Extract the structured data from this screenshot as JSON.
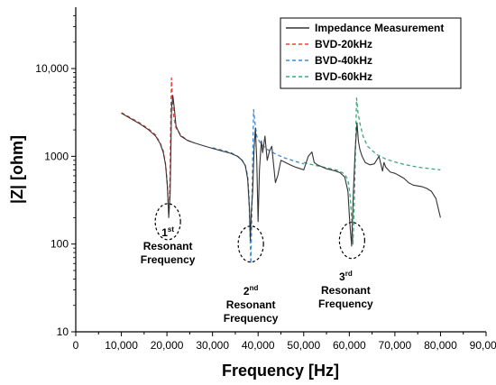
{
  "chart_data": {
    "type": "line",
    "xlabel": "Frequency [Hz]",
    "ylabel": "|Z| [ohm]",
    "xlim": [
      0,
      90000
    ],
    "ylim": [
      10,
      50000
    ],
    "yscale": "log",
    "x_ticks": [
      0,
      10000,
      20000,
      30000,
      40000,
      50000,
      60000,
      70000,
      80000,
      90000
    ],
    "x_tick_labels": [
      "0",
      "10,000",
      "20,000",
      "30,000",
      "40,000",
      "50,000",
      "60,000",
      "70,000",
      "80,000",
      "90,000"
    ],
    "y_ticks": [
      10,
      100,
      1000,
      10000
    ],
    "y_tick_labels": [
      "10",
      "100",
      "1000",
      "10,000"
    ],
    "grid": false,
    "legend_position": "top-right",
    "series": [
      {
        "name": "Impedance Measurement",
        "color": "#333333",
        "style": "solid",
        "x": [
          10000,
          12000,
          14000,
          16000,
          17500,
          18500,
          19200,
          19700,
          20100,
          20400,
          20700,
          21000,
          21300,
          21600,
          22000,
          23000,
          24500,
          26000,
          28000,
          30000,
          32000,
          34000,
          35500,
          36500,
          37200,
          37700,
          38100,
          38300,
          38500,
          38800,
          39100,
          39400,
          39700,
          40000,
          40300,
          40700,
          41000,
          41500,
          42000,
          42500,
          43000,
          43400,
          43800,
          44300,
          45000,
          46000,
          47000,
          48000,
          49000,
          50000,
          51000,
          51800,
          52300,
          53000,
          54000,
          55000,
          56000,
          57000,
          58000,
          59000,
          59700,
          60100,
          60500,
          60900,
          61300,
          61700,
          62000,
          62300,
          62800,
          63500,
          64500,
          65500,
          66500,
          67300,
          67600,
          68000,
          69000,
          70000,
          71000,
          72000,
          73000,
          74000,
          75000,
          76000,
          77000,
          78000,
          79000,
          80000
        ],
        "y": [
          3100,
          2700,
          2350,
          2000,
          1700,
          1400,
          1100,
          800,
          450,
          200,
          380,
          3500,
          4900,
          3600,
          2200,
          1700,
          1520,
          1420,
          1320,
          1230,
          1150,
          1080,
          1000,
          900,
          780,
          550,
          250,
          110,
          230,
          400,
          1200,
          2100,
          900,
          180,
          700,
          1500,
          1100,
          1700,
          900,
          1150,
          1300,
          800,
          500,
          600,
          900,
          850,
          800,
          760,
          730,
          700,
          1000,
          1120,
          850,
          800,
          760,
          720,
          700,
          680,
          650,
          580,
          400,
          180,
          95,
          400,
          1200,
          2400,
          1500,
          1200,
          1000,
          850,
          800,
          820,
          1000,
          680,
          850,
          750,
          660,
          640,
          600,
          560,
          500,
          470,
          460,
          450,
          430,
          400,
          330,
          200
        ]
      },
      {
        "name": "BVD-20kHz",
        "color": "#e8443a",
        "style": "dashed",
        "x": [
          10000,
          12000,
          14000,
          16000,
          17500,
          18500,
          19200,
          19700,
          20100,
          20300,
          20500,
          20700,
          20850,
          21000,
          21200,
          21500,
          22000,
          23000,
          24500,
          26000
        ],
        "y": [
          3150,
          2750,
          2400,
          2050,
          1750,
          1420,
          1150,
          800,
          480,
          300,
          250,
          700,
          3000,
          7800,
          4500,
          2800,
          2100,
          1750,
          1520,
          1420
        ]
      },
      {
        "name": "BVD-40kHz",
        "color": "#3a8ad6",
        "style": "dashed",
        "x": [
          30000,
          32000,
          34000,
          35500,
          36500,
          37200,
          37700,
          38000,
          38200,
          38400,
          38600,
          38800,
          39000,
          39300,
          39700,
          40500,
          42000,
          44000,
          46000,
          48000,
          50000
        ],
        "y": [
          1250,
          1180,
          1100,
          1000,
          900,
          780,
          600,
          350,
          150,
          60,
          180,
          900,
          3400,
          2400,
          1700,
          1400,
          1200,
          1050,
          950,
          880,
          820
        ]
      },
      {
        "name": "BVD-60kHz",
        "color": "#3aa878",
        "style": "dashed",
        "x": [
          50000,
          52000,
          54000,
          56000,
          57500,
          58500,
          59300,
          59800,
          60200,
          60500,
          60800,
          61100,
          61400,
          61600,
          61900,
          62300,
          63000,
          64000,
          66000,
          68000,
          70000,
          72000,
          74000,
          76000,
          78000,
          80000
        ],
        "y": [
          850,
          800,
          760,
          720,
          690,
          650,
          590,
          500,
          350,
          200,
          100,
          300,
          1500,
          4600,
          3200,
          2400,
          1700,
          1300,
          1050,
          930,
          860,
          810,
          770,
          740,
          720,
          700
        ]
      }
    ],
    "annotations": [
      {
        "id": "first",
        "num": "1",
        "sup": "st",
        "line2": "Resonant",
        "line3": "Frequency",
        "x": 20200,
        "y": 180
      },
      {
        "id": "second",
        "num": "2",
        "sup": "nd",
        "line2": "Resonant",
        "line3": "Frequency",
        "x": 38400,
        "y": 100
      },
      {
        "id": "third",
        "num": "3",
        "sup": "rd",
        "line2": "Resonant",
        "line3": "Frequency",
        "x": 60600,
        "y": 110
      }
    ]
  }
}
